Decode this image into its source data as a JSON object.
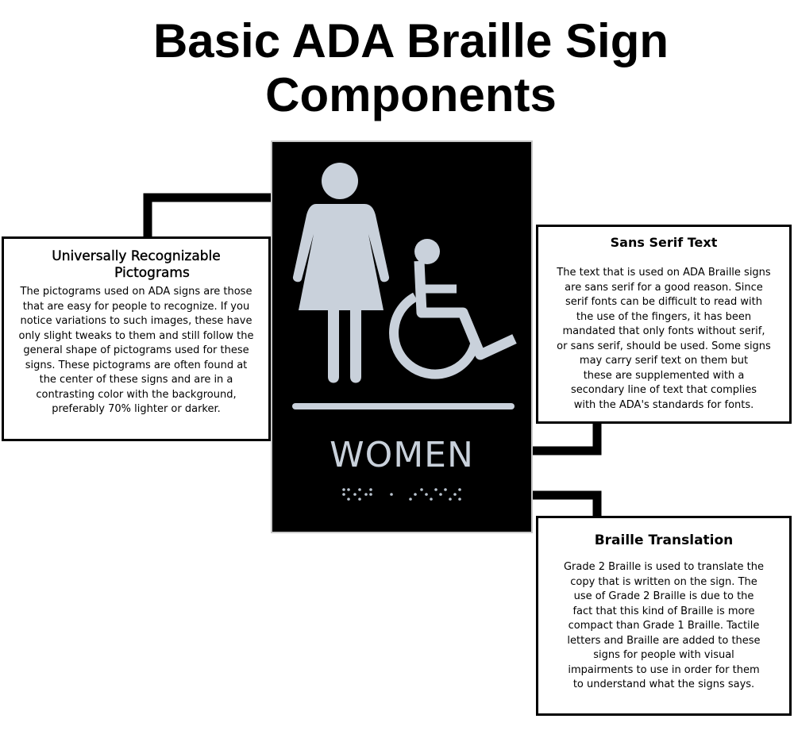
{
  "title": {
    "line1": "Basic ADA Braille Sign",
    "line2": "Components"
  },
  "sign": {
    "word": "WOMEN",
    "background": "#000000",
    "symbol_color": "#c9d1db",
    "icons": [
      "woman-pictogram-icon",
      "wheelchair-accessible-icon",
      "braille-dots-icon"
    ]
  },
  "callouts": {
    "pictograms": {
      "heading_line1": "Universally Recognizable",
      "heading_line2": "Pictograms",
      "lines": [
        "The pictograms used on ADA signs are those",
        "that are easy for people to recognize. If you",
        "notice variations to such images, these have",
        "only slight tweaks to them and still follow the",
        "general shape of pictograms used for these",
        "signs. These pictograms are often found at",
        "the center of these signs and are in a",
        "contrasting color with the background,",
        "preferably 70% lighter or darker."
      ]
    },
    "sans_serif": {
      "heading": "Sans Serif Text",
      "lines": [
        "The text that is used on ADA Braille signs",
        "are sans serif for a good reason. Since",
        "serif fonts can be difficult to read with",
        "the use of the fingers, it has been",
        "mandated that only fonts without serif,",
        "or sans serif, should be used. Some signs",
        "may carry serif text on them but",
        "these are supplemented with a",
        "secondary line of text that complies",
        "with the ADA's standards for fonts."
      ]
    },
    "braille": {
      "heading": "Braille Translation",
      "lines": [
        "Grade 2 Braille is used to translate the",
        "copy that is written on the sign. The",
        "use of Grade 2 Braille is due to the",
        "fact that this kind of Braille is more",
        "compact than Grade 1 Braille. Tactile",
        "letters and Braille are added to these",
        "signs for people with visual",
        "impairments to use in order for them",
        "to understand what the signs says."
      ]
    }
  }
}
